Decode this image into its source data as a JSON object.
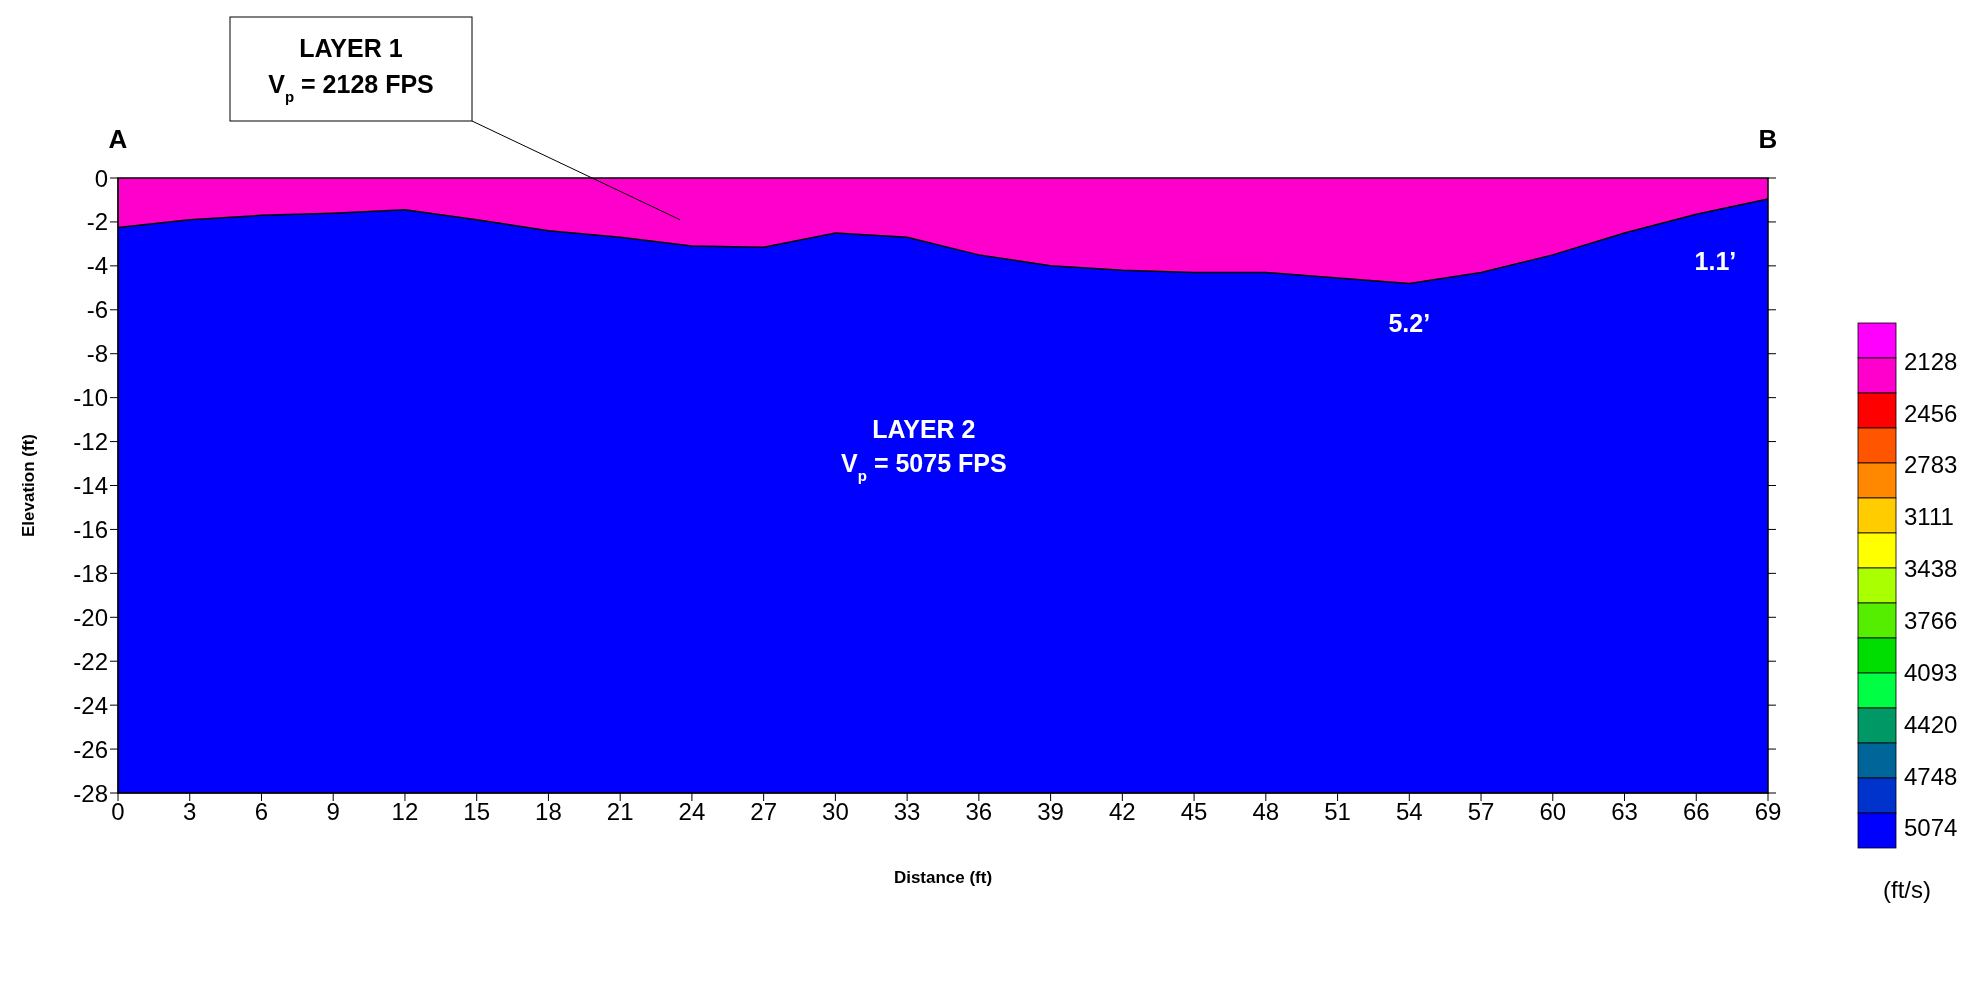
{
  "chart_data": {
    "type": "area",
    "xlabel": "Distance (ft)",
    "ylabel": "Elevation (ft)",
    "clabel": "(ft/s)",
    "x": [
      0,
      3,
      6,
      9,
      12,
      15,
      18,
      21,
      24,
      27,
      30,
      33,
      36,
      39,
      42,
      45,
      48,
      51,
      54,
      57,
      60,
      63,
      66,
      69
    ],
    "series": [
      {
        "color": "#ff00cc",
        "values": [
          -2.25,
          -1.9,
          -1.7,
          -1.6,
          -1.45,
          -1.9,
          -2.4,
          -2.7,
          -3.1,
          -3.15,
          -2.5,
          -2.7,
          -3.5,
          -4.0,
          -4.2,
          -4.3,
          -4.3,
          -4.55,
          -4.8,
          -4.3,
          -3.5,
          -2.5,
          -1.65,
          -0.95
        ]
      }
    ],
    "bands": [
      {
        "axis": "y",
        "from": -28,
        "to": 0,
        "color": "#0000ff"
      }
    ],
    "xlim": [
      0,
      69
    ],
    "xticks": [
      0,
      3,
      6,
      9,
      12,
      15,
      18,
      21,
      24,
      27,
      30,
      33,
      36,
      39,
      42,
      45,
      48,
      51,
      54,
      57,
      60,
      63,
      66,
      69
    ],
    "ylim": [
      -28,
      0
    ],
    "yticks": [
      0,
      -2,
      -4,
      -6,
      -8,
      -10,
      -12,
      -14,
      -16,
      -18,
      -20,
      -22,
      -24,
      -26,
      -28
    ],
    "clim": [
      1889,
      5206
    ],
    "cticks": [
      2128,
      2456,
      2783,
      3111,
      3438,
      3766,
      4093,
      4420,
      4748,
      5074
    ],
    "annotations": [
      "A",
      "B",
      "LAYER 1\nV$_{p}$ = 2128 FPS",
      "LAYER 2\nV$_{p}$ = 5075 FPS",
      "5.2’",
      "1.1’"
    ]
  }
}
